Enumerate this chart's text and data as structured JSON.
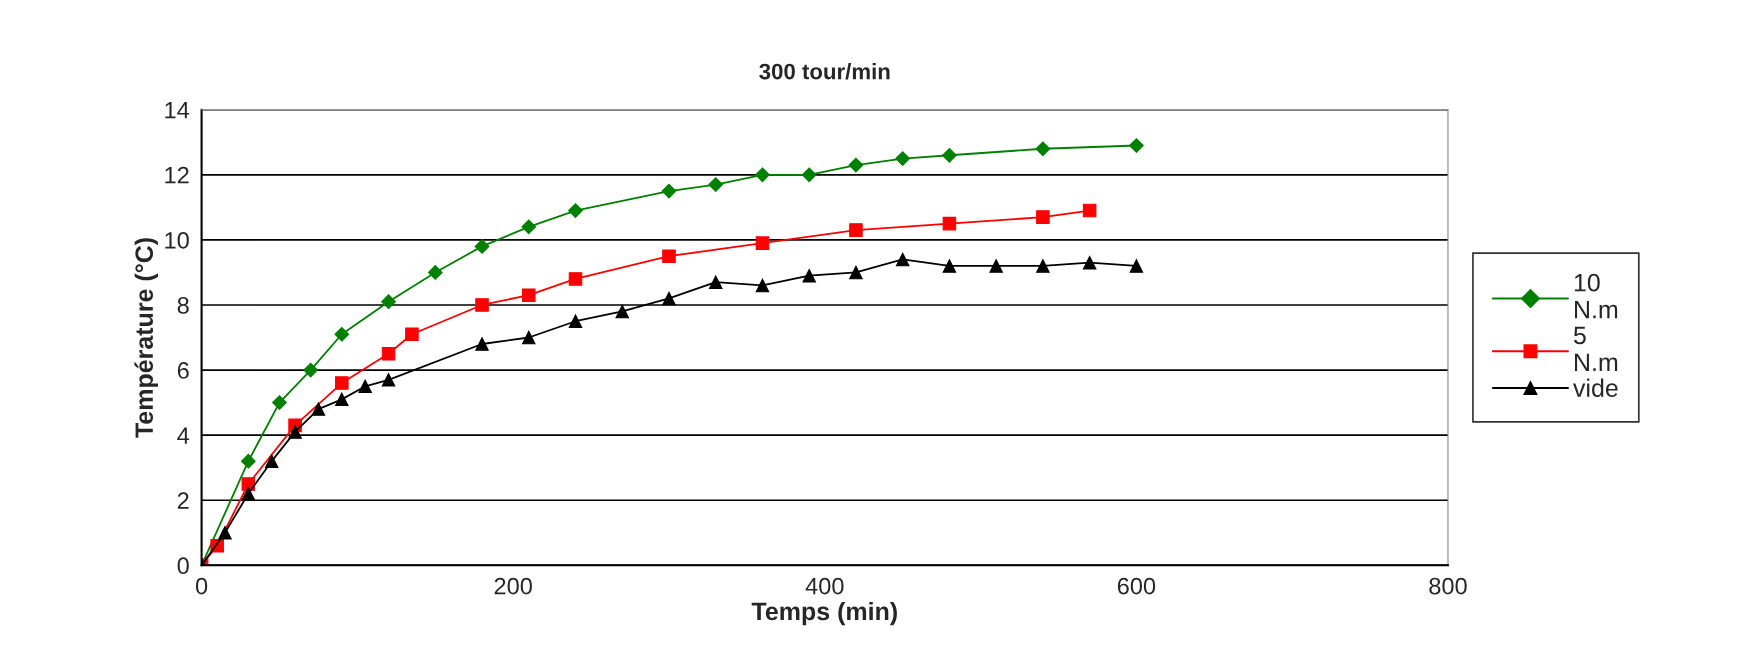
{
  "chart_data": {
    "type": "line",
    "title": "300 tour/min",
    "xlabel": "Temps (min)",
    "ylabel": "Température (°C)",
    "xlim": [
      0,
      800
    ],
    "xticks": [
      0,
      200,
      400,
      600,
      800
    ],
    "ylim": [
      0,
      14
    ],
    "yticks": [
      0,
      2,
      4,
      6,
      8,
      10,
      12,
      14
    ],
    "grid": "y",
    "legend": "right",
    "line_style": "solid",
    "series": [
      {
        "name": "10 N.m",
        "color": "#008000",
        "marker": "diamond",
        "x": [
          0,
          30,
          50,
          70,
          90,
          120,
          150,
          180,
          210,
          240,
          300,
          330,
          360,
          390,
          420,
          450,
          480,
          540,
          600
        ],
        "values": [
          0,
          3.2,
          5.0,
          6.0,
          7.1,
          8.1,
          9.0,
          9.8,
          10.4,
          10.9,
          11.5,
          11.7,
          12.0,
          12.0,
          12.3,
          12.5,
          12.6,
          12.8,
          12.9
        ]
      },
      {
        "name": "5 N.m",
        "color": "#ff0000",
        "marker": "square",
        "x": [
          0,
          10,
          30,
          60,
          90,
          120,
          135,
          180,
          210,
          240,
          300,
          360,
          420,
          480,
          540,
          570
        ],
        "values": [
          0,
          0.6,
          2.5,
          4.3,
          5.6,
          6.5,
          7.1,
          8.0,
          8.3,
          8.8,
          9.5,
          9.9,
          10.3,
          10.5,
          10.7,
          10.9
        ]
      },
      {
        "name": "vide",
        "color": "#000000",
        "marker": "triangle",
        "x": [
          0,
          15,
          30,
          45,
          60,
          75,
          90,
          105,
          120,
          180,
          210,
          240,
          270,
          300,
          330,
          360,
          390,
          420,
          450,
          480,
          510,
          540,
          570,
          600
        ],
        "values": [
          0,
          1.0,
          2.2,
          3.2,
          4.1,
          4.8,
          5.1,
          5.5,
          5.7,
          6.8,
          7.0,
          7.5,
          7.8,
          8.2,
          8.7,
          8.6,
          8.9,
          9.0,
          9.4,
          9.2,
          9.2,
          9.2,
          9.3,
          9.2
        ]
      }
    ]
  }
}
